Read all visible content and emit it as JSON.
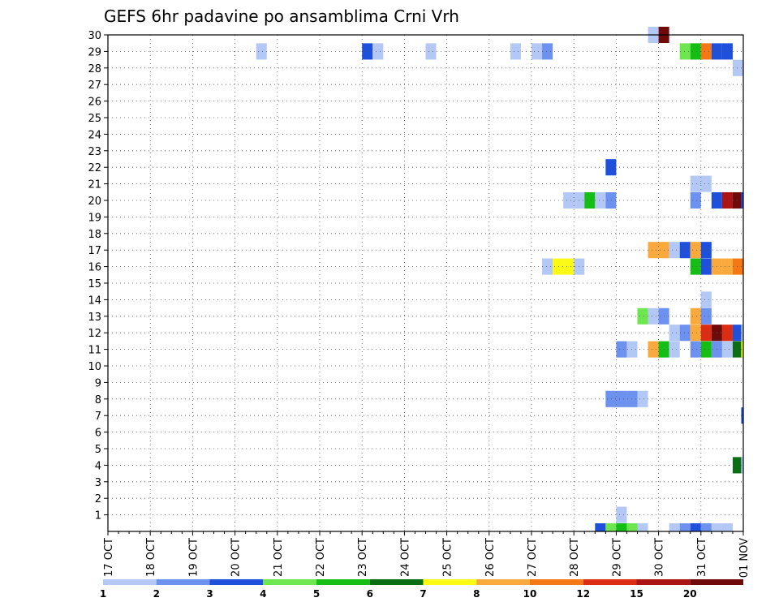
{
  "chart_data": {
    "type": "heatmap",
    "title": "GEFS 6hr padavine po ansamblima Crni Vrh",
    "xlabel": "",
    "ylabel": "",
    "x_tick_labels": [
      "17 OCT",
      "18 OCT",
      "19 OCT",
      "20 OCT",
      "21 OCT",
      "22 OCT",
      "23 OCT",
      "24 OCT",
      "25 OCT",
      "26 OCT",
      "27 OCT",
      "28 OCT",
      "29 OCT",
      "30 OCT",
      "31 OCT",
      "01 NOV"
    ],
    "y_tick_labels": [
      "1",
      "2",
      "3",
      "4",
      "5",
      "6",
      "7",
      "8",
      "9",
      "10",
      "11",
      "12",
      "13",
      "14",
      "15",
      "16",
      "17",
      "18",
      "19",
      "20",
      "21",
      "22",
      "23",
      "24",
      "25",
      "26",
      "27",
      "28",
      "29",
      "30"
    ],
    "ylim": [
      0,
      30
    ],
    "xlim_days": [
      0,
      15
    ],
    "time_step_hours": 6,
    "grid": true,
    "legend": {
      "placement": "bottom",
      "labels": [
        "1",
        "2",
        "3",
        "4",
        "5",
        "6",
        "7",
        "8",
        "10",
        "12",
        "15",
        "20"
      ],
      "colors": [
        "#b4c8f5",
        "#6c91ee",
        "#1e50dc",
        "#6ee650",
        "#14be14",
        "#0a6e14",
        "#fafa14",
        "#faaa3c",
        "#f57814",
        "#dc2d14",
        "#aa1414",
        "#6e0a0a"
      ]
    },
    "cells_note": "each cell: [member, day_offset_from_17_OCT, category_index]",
    "cells": [
      [
        30,
        12.75,
        0
      ],
      [
        30,
        13.0,
        11
      ],
      [
        29,
        3.5,
        0
      ],
      [
        29,
        6.0,
        2
      ],
      [
        29,
        6.25,
        0
      ],
      [
        29,
        7.5,
        0
      ],
      [
        29,
        9.5,
        0
      ],
      [
        29,
        10.0,
        0
      ],
      [
        29,
        10.25,
        1
      ],
      [
        29,
        13.5,
        3
      ],
      [
        29,
        13.75,
        4
      ],
      [
        29,
        14.0,
        8
      ],
      [
        29,
        14.25,
        2
      ],
      [
        29,
        14.5,
        2
      ],
      [
        28,
        14.75,
        0
      ],
      [
        22,
        11.75,
        2
      ],
      [
        21,
        13.75,
        0
      ],
      [
        21,
        14.0,
        0
      ],
      [
        20,
        10.75,
        0
      ],
      [
        20,
        11.0,
        0
      ],
      [
        20,
        11.25,
        4
      ],
      [
        20,
        11.5,
        0
      ],
      [
        20,
        11.75,
        1
      ],
      [
        20,
        13.75,
        1
      ],
      [
        20,
        14.25,
        2
      ],
      [
        20,
        14.5,
        10
      ],
      [
        20,
        14.75,
        11
      ],
      [
        20,
        14.95,
        2
      ],
      [
        17,
        12.75,
        7
      ],
      [
        17,
        13.0,
        7
      ],
      [
        17,
        13.25,
        0
      ],
      [
        17,
        13.5,
        2
      ],
      [
        17,
        13.75,
        7
      ],
      [
        17,
        14.0,
        2
      ],
      [
        16,
        10.25,
        0
      ],
      [
        16,
        10.5,
        6
      ],
      [
        16,
        10.75,
        6
      ],
      [
        16,
        11.0,
        0
      ],
      [
        16,
        13.75,
        4
      ],
      [
        16,
        14.0,
        2
      ],
      [
        16,
        14.25,
        7
      ],
      [
        16,
        14.5,
        7
      ],
      [
        16,
        14.75,
        8
      ],
      [
        14,
        14.0,
        0
      ],
      [
        13,
        12.5,
        3
      ],
      [
        13,
        12.75,
        0
      ],
      [
        13,
        13.0,
        1
      ],
      [
        13,
        13.75,
        7
      ],
      [
        13,
        14.0,
        1
      ],
      [
        12,
        13.25,
        0
      ],
      [
        12,
        13.5,
        1
      ],
      [
        12,
        13.75,
        7
      ],
      [
        12,
        14.0,
        9
      ],
      [
        12,
        14.25,
        11
      ],
      [
        12,
        14.5,
        9
      ],
      [
        12,
        14.75,
        2
      ],
      [
        12,
        14.95,
        0
      ],
      [
        11,
        12.0,
        1
      ],
      [
        11,
        12.25,
        0
      ],
      [
        11,
        12.75,
        7
      ],
      [
        11,
        13.0,
        4
      ],
      [
        11,
        13.25,
        0
      ],
      [
        11,
        13.75,
        1
      ],
      [
        11,
        14.0,
        4
      ],
      [
        11,
        14.25,
        1
      ],
      [
        11,
        14.5,
        0
      ],
      [
        11,
        14.75,
        5
      ],
      [
        11,
        14.95,
        6
      ],
      [
        8,
        11.75,
        1
      ],
      [
        8,
        12.0,
        1
      ],
      [
        8,
        12.25,
        1
      ],
      [
        8,
        12.5,
        0
      ],
      [
        7,
        14.95,
        2
      ],
      [
        4,
        14.75,
        5
      ],
      [
        4,
        14.95,
        0
      ],
      [
        1,
        12.0,
        0
      ],
      [
        0,
        11.5,
        2
      ],
      [
        0,
        11.75,
        3
      ],
      [
        0,
        12.0,
        4
      ],
      [
        0,
        12.25,
        3
      ],
      [
        0,
        12.5,
        0
      ],
      [
        0,
        13.25,
        0
      ],
      [
        0,
        13.5,
        1
      ],
      [
        0,
        13.75,
        2
      ],
      [
        0,
        14.0,
        1
      ],
      [
        0,
        14.25,
        0
      ],
      [
        0,
        14.5,
        0
      ]
    ]
  }
}
